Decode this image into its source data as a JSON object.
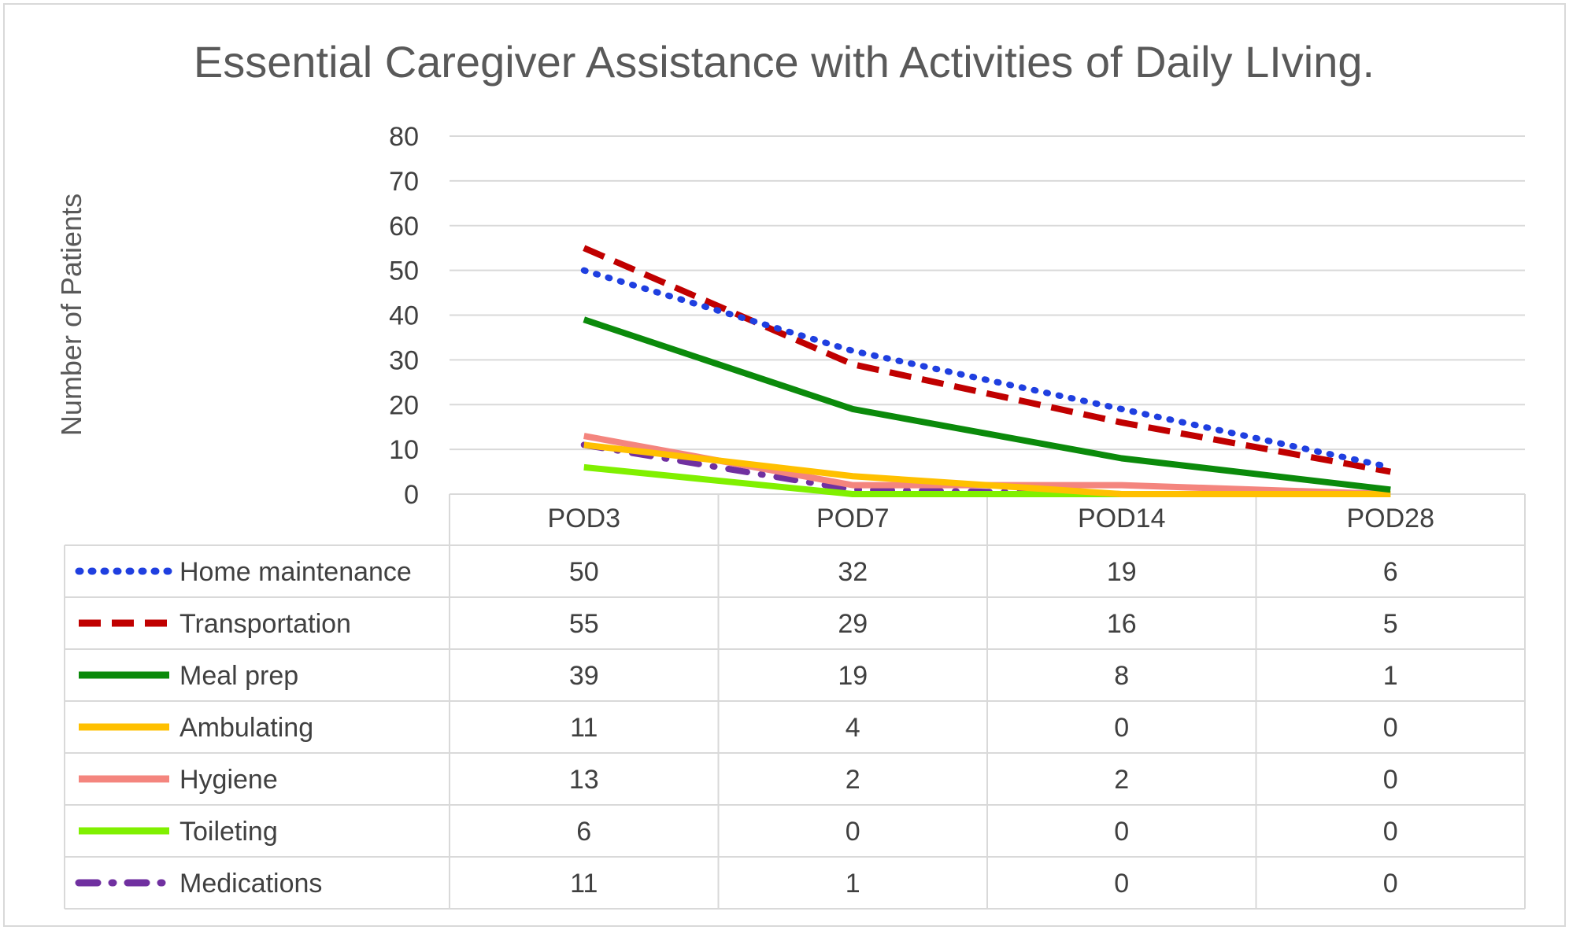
{
  "chart_data": {
    "type": "line",
    "title": "Essential Caregiver Assistance with Activities of Daily LIving.",
    "xlabel": "",
    "ylabel": "Number of Patients",
    "ylim": [
      0,
      80
    ],
    "yticks": [
      0,
      10,
      20,
      30,
      40,
      50,
      60,
      70,
      80
    ],
    "grid": true,
    "legend_placement": "data-table-left",
    "categories": [
      "POD3",
      "POD7",
      "POD14",
      "POD28"
    ],
    "series": [
      {
        "name": "Home maintenance",
        "values": [
          50,
          32,
          19,
          6
        ],
        "color": "#1f3fe0",
        "line_style": "dotted"
      },
      {
        "name": "Transportation",
        "values": [
          55,
          29,
          16,
          5
        ],
        "color": "#c00000",
        "line_style": "dashed"
      },
      {
        "name": "Meal prep",
        "values": [
          39,
          19,
          8,
          1
        ],
        "color": "#0b8a0b",
        "line_style": "solid"
      },
      {
        "name": "Ambulating",
        "values": [
          11,
          4,
          0,
          0
        ],
        "color": "#ffc000",
        "line_style": "solid"
      },
      {
        "name": "Hygiene",
        "values": [
          13,
          2,
          2,
          0
        ],
        "color": "#f4857e",
        "line_style": "solid"
      },
      {
        "name": "Toileting",
        "values": [
          6,
          0,
          0,
          0
        ],
        "color": "#80f000",
        "line_style": "solid"
      },
      {
        "name": "Medications",
        "values": [
          11,
          1,
          0,
          0
        ],
        "color": "#7030a0",
        "line_style": "dash-dot"
      }
    ]
  }
}
